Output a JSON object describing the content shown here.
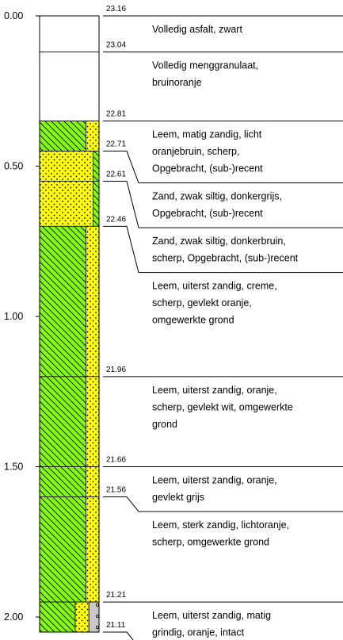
{
  "chart_data": {
    "type": "borehole",
    "ylim": [
      0,
      2.05
    ],
    "yticks": [
      {
        "value": 0,
        "label": "0.00"
      },
      {
        "value": 0.5,
        "label": "0.50"
      },
      {
        "value": 1,
        "label": "1.00"
      },
      {
        "value": 1.5,
        "label": "1.50"
      },
      {
        "value": 2,
        "label": "2.00"
      }
    ],
    "layers": [
      {
        "elevation": 23.16,
        "pattern": [
          "blank"
        ],
        "description": [
          "Volledig asfalt, zwart"
        ]
      },
      {
        "elevation": 23.04,
        "pattern": [
          "blank"
        ],
        "description": [
          "Volledig menggranulaat,",
          "bruinoranje"
        ]
      },
      {
        "elevation": 22.81,
        "pattern": [
          "hatch",
          "dots"
        ],
        "description": [
          "Leem, matig zandig, licht",
          "oranjebruin, scherp,",
          "Opgebracht, (sub-)recent"
        ]
      },
      {
        "elevation": 22.71,
        "pattern": [
          "dots",
          "hatch"
        ],
        "description": [
          "Zand, zwak siltig, donkergrijs,",
          "Opgebracht, (sub-)recent"
        ]
      },
      {
        "elevation": 22.61,
        "pattern": [
          "dots",
          "hatch"
        ],
        "description": [
          "Zand, zwak siltig, donkerbruin,",
          "scherp, Opgebracht, (sub-)recent"
        ]
      },
      {
        "elevation": 22.46,
        "pattern": [
          "hatch",
          "dots"
        ],
        "description": [
          "Leem, uiterst zandig, creme,",
          "scherp, gevlekt oranje,",
          "omgewerkte grond"
        ]
      },
      {
        "elevation": 21.96,
        "pattern": [
          "hatch",
          "dots"
        ],
        "description": [
          "Leem, uiterst zandig, oranje,",
          "scherp, gevlekt wit, omgewerkte",
          "grond"
        ]
      },
      {
        "elevation": 21.66,
        "pattern": [
          "hatch",
          "dots"
        ],
        "description": [
          "Leem, uiterst zandig, oranje,",
          "gevlekt grijs"
        ]
      },
      {
        "elevation": 21.56,
        "pattern": [
          "hatch",
          "dots"
        ],
        "description": [
          "Leem, sterk zandig, lichtoranje,",
          "scherp, omgewerkte grond"
        ]
      },
      {
        "elevation": 21.21,
        "pattern": [
          "hatch",
          "dots",
          "gravel"
        ],
        "description": [
          "Leem, uiterst zandig, matig",
          "grindig, oranje, intact"
        ]
      },
      {
        "elevation": 21.11,
        "pattern": [],
        "description": []
      }
    ]
  }
}
